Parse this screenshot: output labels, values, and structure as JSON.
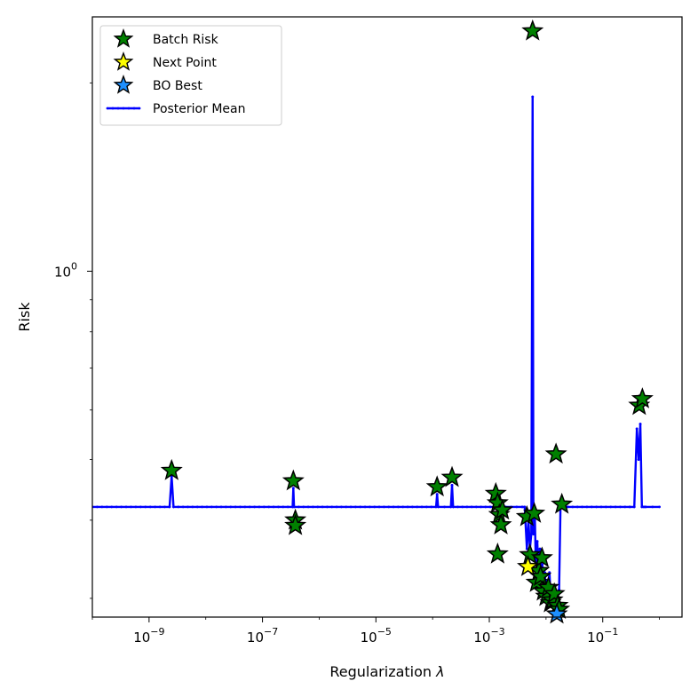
{
  "chart_data": {
    "type": "scatter",
    "xlabel": "Regularization",
    "xlabel_symbol": "λ",
    "ylabel": "Risk",
    "x_scale": "log",
    "y_scale": "log",
    "xlim": [
      1e-10,
      2.5
    ],
    "ylim": [
      0.28,
      2.55
    ],
    "x_ticks": [
      {
        "value": 1e-09,
        "base": "10",
        "exp": "−9"
      },
      {
        "value": 1e-07,
        "base": "10",
        "exp": "−7"
      },
      {
        "value": 1e-05,
        "base": "10",
        "exp": "−5"
      },
      {
        "value": 0.001,
        "base": "10",
        "exp": "−3"
      },
      {
        "value": 0.1,
        "base": "10",
        "exp": "−1"
      }
    ],
    "y_ticks": [
      {
        "value": 1.0,
        "base": "10",
        "exp": "0"
      }
    ],
    "y_minor_ticks": [
      0.3,
      0.4,
      0.5,
      0.6,
      0.7,
      0.8,
      0.9,
      2.0
    ],
    "legend_position": "top-left",
    "colors": {
      "batch_risk": "#008000",
      "next_point": "#ffff00",
      "bo_best": "#1e90ff",
      "posterior_mean": "#0000ff"
    },
    "legend": [
      {
        "label": "Batch Risk",
        "kind": "star",
        "color": "#008000"
      },
      {
        "label": "Next Point",
        "kind": "star",
        "color": "#ffff00"
      },
      {
        "label": "BO Best",
        "kind": "star",
        "color": "#1e90ff"
      },
      {
        "label": "Posterior Mean",
        "kind": "line",
        "color": "#0000ff"
      }
    ],
    "series": [
      {
        "name": "Batch Risk",
        "x": [
          2.5e-09,
          3.5e-07,
          3.8e-07,
          3.8e-07,
          0.00012,
          0.00022,
          0.0013,
          0.0014,
          0.0015,
          0.0016,
          0.0014,
          0.0017,
          0.0046,
          0.0052,
          0.0058,
          0.0062,
          0.0068,
          0.0075,
          0.008,
          0.0085,
          0.009,
          0.01,
          0.011,
          0.012,
          0.013,
          0.014,
          0.015,
          0.016,
          0.017,
          0.019,
          0.44,
          0.5
        ],
        "y": [
          0.48,
          0.462,
          0.4,
          0.392,
          0.452,
          0.468,
          0.441,
          0.426,
          0.408,
          0.393,
          0.353,
          0.415,
          0.405,
          0.352,
          2.42,
          0.41,
          0.318,
          0.332,
          0.325,
          0.348,
          0.308,
          0.302,
          0.312,
          0.295,
          0.298,
          0.305,
          0.51,
          0.292,
          0.288,
          0.424,
          0.61,
          0.625
        ]
      },
      {
        "name": "Next Point",
        "x": [
          0.0048
        ],
        "y": [
          0.337
        ]
      },
      {
        "name": "BO Best",
        "x": [
          0.0155
        ],
        "y": [
          0.283
        ]
      },
      {
        "name": "Posterior Mean",
        "x": [
          1e-10,
          2.3e-09,
          2.5e-09,
          2.7e-09,
          3.4e-07,
          3.5e-07,
          3.6e-07,
          0.000115,
          0.00012,
          0.000125,
          0.00021,
          0.00022,
          0.00023,
          0.00125,
          0.0013,
          0.00135,
          0.00145,
          0.0015,
          0.00155,
          0.0038,
          0.0042,
          0.0046,
          0.0049,
          0.0052,
          0.0055,
          0.0058,
          0.006,
          0.0063,
          0.0066,
          0.007,
          0.0074,
          0.0078,
          0.0082,
          0.0086,
          0.009,
          0.0095,
          0.01,
          0.0105,
          0.011,
          0.0115,
          0.012,
          0.013,
          0.014,
          0.015,
          0.016,
          0.017,
          0.018,
          0.019,
          0.02,
          0.3,
          0.36,
          0.4,
          0.43,
          0.46,
          0.49,
          0.53,
          0.57,
          1.0
        ],
        "y": [
          0.42,
          0.42,
          0.47,
          0.42,
          0.42,
          0.45,
          0.42,
          0.42,
          0.44,
          0.42,
          0.42,
          0.455,
          0.42,
          0.42,
          0.44,
          0.42,
          0.42,
          0.41,
          0.42,
          0.42,
          0.42,
          0.36,
          0.4,
          0.36,
          0.38,
          1.9,
          0.38,
          0.42,
          0.34,
          0.37,
          0.33,
          0.36,
          0.32,
          0.34,
          0.31,
          0.33,
          0.3,
          0.32,
          0.31,
          0.33,
          0.305,
          0.31,
          0.3,
          0.29,
          0.3,
          0.31,
          0.42,
          0.42,
          0.42,
          0.42,
          0.42,
          0.56,
          0.5,
          0.57,
          0.42,
          0.42,
          0.42,
          0.42
        ]
      }
    ]
  }
}
